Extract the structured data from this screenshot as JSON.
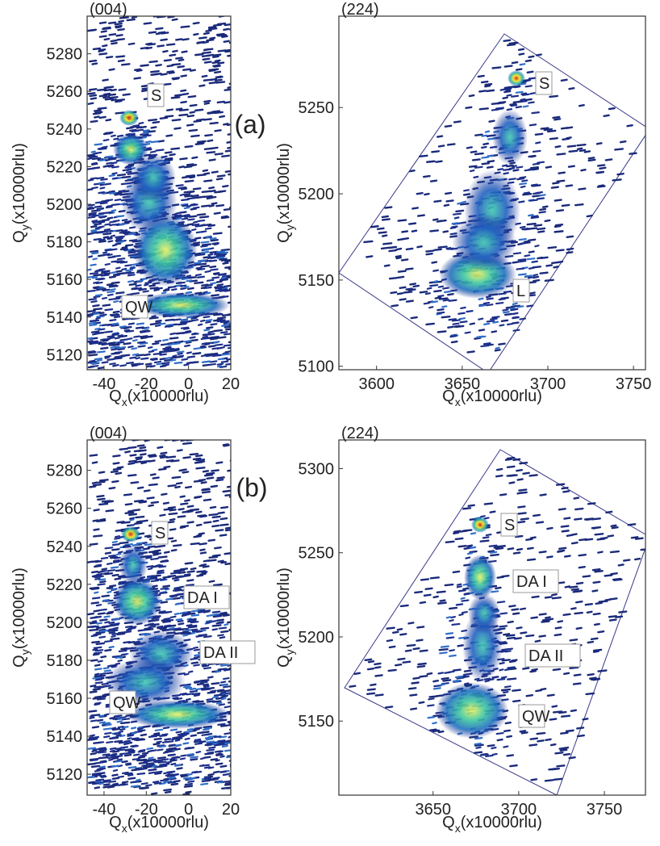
{
  "chart_data": [
    {
      "type": "heatmap",
      "title": "(004)",
      "panel_label": "(a)",
      "x_label": {
        "symbol": "Q",
        "subscript": "x",
        "unit": "(x10000rlu)"
      },
      "y_label": {
        "symbol": "Q",
        "subscript": "y",
        "unit": "(x10000rlu)"
      },
      "xlim": [
        -48,
        20
      ],
      "xticks": [
        -40,
        -20,
        0,
        20
      ],
      "ylim": [
        5112,
        5300
      ],
      "yticks": [
        5120,
        5140,
        5160,
        5180,
        5200,
        5220,
        5240,
        5260,
        5280
      ],
      "annotations": [
        "S",
        "QW"
      ]
    },
    {
      "type": "heatmap",
      "title": "(224)",
      "x_label": {
        "symbol": "Q",
        "subscript": "x",
        "unit": "(x10000rlu)"
      },
      "y_label": {
        "symbol": "Q",
        "subscript": "y",
        "unit": "(x10000rlu)"
      },
      "xlim": [
        3578,
        3757
      ],
      "xticks": [
        3600,
        3650,
        3700,
        3750
      ],
      "ylim": [
        5098,
        5303
      ],
      "yticks": [
        5100,
        5150,
        5200,
        5250
      ],
      "annotations": [
        "S",
        "L"
      ]
    },
    {
      "type": "heatmap",
      "title": "(004)",
      "panel_label": "(b)",
      "x_label": {
        "symbol": "Q",
        "subscript": "x",
        "unit": "(x10000rlu)"
      },
      "y_label": {
        "symbol": "Q",
        "subscript": "y",
        "unit": "(x10000rlu)"
      },
      "xlim": [
        -48,
        20
      ],
      "xticks": [
        -40,
        -20,
        0,
        20
      ],
      "ylim": [
        5109,
        5296
      ],
      "yticks": [
        5120,
        5140,
        5160,
        5180,
        5200,
        5220,
        5240,
        5260,
        5280
      ],
      "annotations": [
        "S",
        "DA I",
        "DA II",
        "QW"
      ]
    },
    {
      "type": "heatmap",
      "title": "(224)",
      "x_label": {
        "symbol": "Q",
        "subscript": "x",
        "unit": "(x10000rlu)"
      },
      "y_label": {
        "symbol": "Q",
        "subscript": "y",
        "unit": "(x10000rlu)"
      },
      "xlim": [
        3595,
        3774
      ],
      "xticks": [
        3650,
        3700,
        3750
      ],
      "ylim": [
        5106,
        5317
      ],
      "yticks": [
        5150,
        5200,
        5250,
        5300
      ],
      "annotations": [
        "S",
        "DA I",
        "DA II",
        "QW"
      ]
    }
  ]
}
